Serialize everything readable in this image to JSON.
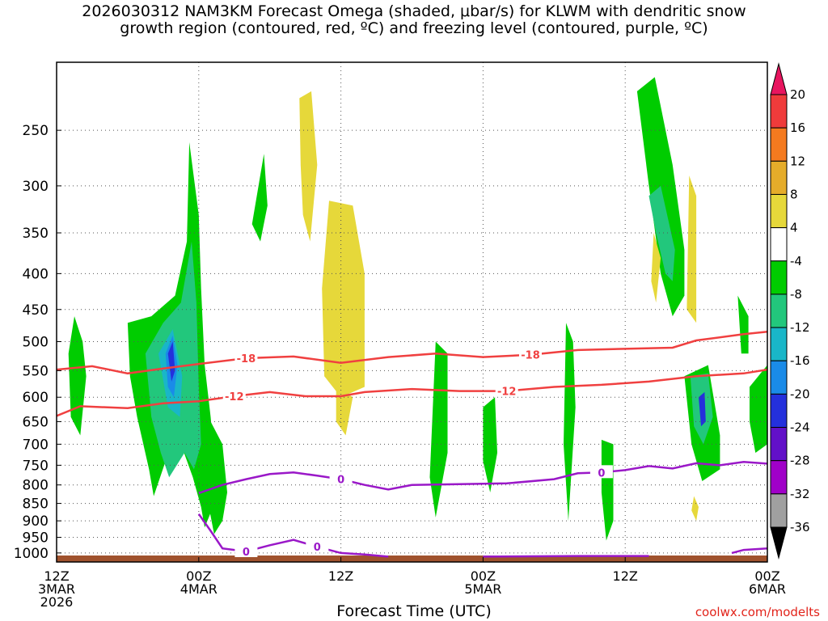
{
  "chart_data": {
    "type": "heatmap",
    "title_line1": "2026030312 NAM3KM Forecast Omega (shaded, μbar/s) for KLWM with dendritic snow",
    "title_line2": "growth region (contoured, red, ºC) and freezing level (contoured, purple, ºC)",
    "xlabel": "Forecast Time (UTC)",
    "credit": "coolwx.com/modelts",
    "x_ticks": [
      {
        "hour": 0,
        "lines": [
          "12Z",
          "3MAR",
          "2026"
        ]
      },
      {
        "hour": 12,
        "lines": [
          "00Z",
          "4MAR"
        ]
      },
      {
        "hour": 24,
        "lines": [
          "12Z"
        ]
      },
      {
        "hour": 36,
        "lines": [
          "00Z",
          "5MAR"
        ]
      },
      {
        "hour": 48,
        "lines": [
          "12Z"
        ]
      },
      {
        "hour": 60,
        "lines": [
          "00Z",
          "6MAR"
        ]
      }
    ],
    "xlim": [
      0,
      60
    ],
    "y_ticks": [
      250,
      300,
      350,
      400,
      450,
      500,
      550,
      600,
      650,
      700,
      750,
      800,
      850,
      900,
      950,
      1000
    ],
    "ylim": [
      200,
      1030
    ],
    "y_scale": "log",
    "colorbar": {
      "ticks": [
        "20",
        "16",
        "12",
        "8",
        "4",
        "-4",
        "-8",
        "-12",
        "-16",
        "-20",
        "-24",
        "-28",
        "-32",
        "-36"
      ],
      "colors": [
        "#e8155f",
        "#ef3b3b",
        "#f47a1f",
        "#e5ac2a",
        "#e6d83a",
        "#ffffff",
        "#00cc00",
        "#22c77c",
        "#19b6c8",
        "#1a8be8",
        "#2430dc",
        "#6210c8",
        "#a000c8",
        "#a0a0a0",
        "#000000"
      ]
    },
    "contours": [
      {
        "label": "-18",
        "color": "#f04040",
        "points": [
          [
            0,
            548
          ],
          [
            3,
            542
          ],
          [
            6,
            555
          ],
          [
            9,
            546
          ],
          [
            12,
            538
          ],
          [
            16,
            528
          ],
          [
            20,
            525
          ],
          [
            24,
            536
          ],
          [
            28,
            526
          ],
          [
            32,
            520
          ],
          [
            36,
            526
          ],
          [
            40,
            522
          ],
          [
            44,
            514
          ],
          [
            48,
            512
          ],
          [
            52,
            510
          ],
          [
            54,
            498
          ],
          [
            58,
            488
          ],
          [
            60,
            484
          ]
        ]
      },
      {
        "label": "-12",
        "color": "#f04040",
        "points": [
          [
            0,
            638
          ],
          [
            2,
            618
          ],
          [
            6,
            622
          ],
          [
            9,
            612
          ],
          [
            12,
            608
          ],
          [
            15,
            598
          ],
          [
            18,
            590
          ],
          [
            21,
            598
          ],
          [
            24,
            598
          ],
          [
            26,
            590
          ],
          [
            30,
            584
          ],
          [
            34,
            588
          ],
          [
            38,
            588
          ],
          [
            42,
            580
          ],
          [
            46,
            576
          ],
          [
            50,
            570
          ],
          [
            54,
            560
          ],
          [
            58,
            555
          ],
          [
            60,
            548
          ]
        ]
      },
      {
        "label": "0",
        "color": "#9a18c8",
        "points": [
          [
            12,
            822
          ],
          [
            14,
            800
          ],
          [
            16,
            785
          ],
          [
            18,
            772
          ],
          [
            20,
            768
          ],
          [
            22,
            776
          ],
          [
            24,
            785
          ],
          [
            26,
            800
          ],
          [
            28,
            812
          ],
          [
            30,
            800
          ],
          [
            34,
            798
          ],
          [
            38,
            796
          ],
          [
            42,
            785
          ],
          [
            44,
            770
          ],
          [
            46,
            768
          ],
          [
            48,
            762
          ],
          [
            50,
            752
          ],
          [
            52,
            758
          ],
          [
            54,
            745
          ],
          [
            56,
            750
          ],
          [
            58,
            742
          ],
          [
            60,
            746
          ]
        ]
      },
      {
        "label": "0",
        "color": "#9a18c8",
        "points": [
          [
            12,
            880
          ],
          [
            13,
            930
          ],
          [
            14,
            985
          ],
          [
            16,
            995
          ],
          [
            18,
            975
          ],
          [
            20,
            958
          ],
          [
            22,
            980
          ],
          [
            24,
            1000
          ],
          [
            26,
            1005
          ],
          [
            28,
            1012
          ]
        ]
      },
      {
        "label": "",
        "color": "#9a18c8",
        "points": [
          [
            36,
            1012
          ],
          [
            44,
            1010
          ],
          [
            50,
            1010
          ]
        ]
      },
      {
        "label": "",
        "color": "#9a18c8",
        "points": [
          [
            57,
            1000
          ],
          [
            58,
            990
          ],
          [
            60,
            985
          ]
        ]
      }
    ],
    "shaded_regions": [
      {
        "value": -4,
        "color": "#00cc00",
        "points": [
          [
            1.5,
            460
          ],
          [
            2.2,
            500
          ],
          [
            2.5,
            560
          ],
          [
            2,
            680
          ],
          [
            1.2,
            640
          ],
          [
            1,
            520
          ]
        ]
      },
      {
        "value": -4,
        "color": "#00cc00",
        "points": [
          [
            6,
            470
          ],
          [
            8,
            460
          ],
          [
            10,
            430
          ],
          [
            11,
            360
          ],
          [
            11.2,
            260
          ],
          [
            12,
            330
          ],
          [
            12.2,
            420
          ],
          [
            12.5,
            540
          ],
          [
            13,
            640
          ],
          [
            13.4,
            760
          ],
          [
            13.2,
            860
          ],
          [
            12.5,
            920
          ],
          [
            12.2,
            860
          ],
          [
            11.5,
            780
          ],
          [
            10.5,
            700
          ],
          [
            9.2,
            740
          ],
          [
            8.2,
            830
          ],
          [
            7.8,
            760
          ],
          [
            6.8,
            640
          ],
          [
            6.2,
            560
          ]
        ]
      },
      {
        "value": -8,
        "color": "#22c77c",
        "points": [
          [
            7.5,
            520
          ],
          [
            9,
            470
          ],
          [
            10.5,
            440
          ],
          [
            11.4,
            360
          ],
          [
            11.8,
            440
          ],
          [
            12,
            580
          ],
          [
            12.2,
            700
          ],
          [
            11.6,
            760
          ],
          [
            10.8,
            720
          ],
          [
            9.5,
            780
          ],
          [
            8.8,
            720
          ],
          [
            8,
            640
          ]
        ]
      },
      {
        "value": -12,
        "color": "#19b6c8",
        "points": [
          [
            8.6,
            520
          ],
          [
            9.8,
            480
          ],
          [
            10.6,
            560
          ],
          [
            10.4,
            640
          ],
          [
            9.4,
            620
          ]
        ]
      },
      {
        "value": -16,
        "color": "#1a8be8",
        "points": [
          [
            9.2,
            520
          ],
          [
            9.8,
            490
          ],
          [
            10.2,
            540
          ],
          [
            9.9,
            600
          ],
          [
            9.4,
            580
          ]
        ]
      },
      {
        "value": -20,
        "color": "#2430dc",
        "points": [
          [
            9.4,
            520
          ],
          [
            9.8,
            500
          ],
          [
            10.0,
            550
          ],
          [
            9.7,
            570
          ]
        ]
      },
      {
        "value": -4,
        "color": "#00cc00",
        "points": [
          [
            13,
            650
          ],
          [
            14,
            700
          ],
          [
            14.4,
            820
          ],
          [
            14,
            900
          ],
          [
            13.3,
            940
          ],
          [
            12.8,
            850
          ]
        ]
      },
      {
        "value": -4,
        "color": "#00cc00",
        "points": [
          [
            16.5,
            340
          ],
          [
            17.5,
            270
          ],
          [
            17.8,
            320
          ],
          [
            17.2,
            360
          ]
        ]
      },
      {
        "value": -4,
        "color": "#00cc00",
        "points": [
          [
            32,
            500
          ],
          [
            33,
            520
          ],
          [
            33,
            720
          ],
          [
            32,
            890
          ],
          [
            31.5,
            780
          ]
        ]
      },
      {
        "value": -4,
        "color": "#00cc00",
        "points": [
          [
            36,
            620
          ],
          [
            37,
            600
          ],
          [
            37.2,
            720
          ],
          [
            36.6,
            820
          ],
          [
            36,
            740
          ]
        ]
      },
      {
        "value": -4,
        "color": "#00cc00",
        "points": [
          [
            43,
            470
          ],
          [
            43.6,
            500
          ],
          [
            43.8,
            620
          ],
          [
            43.2,
            900
          ],
          [
            42.8,
            700
          ]
        ]
      },
      {
        "value": -4,
        "color": "#00cc00",
        "points": [
          [
            46,
            690
          ],
          [
            47,
            700
          ],
          [
            47,
            900
          ],
          [
            46.4,
            960
          ],
          [
            46,
            820
          ]
        ]
      },
      {
        "value": -4,
        "color": "#00cc00",
        "points": [
          [
            49,
            220
          ],
          [
            50.5,
            210
          ],
          [
            52,
            280
          ],
          [
            53,
            370
          ],
          [
            53,
            430
          ],
          [
            52,
            460
          ],
          [
            51,
            400
          ],
          [
            50,
            300
          ]
        ]
      },
      {
        "value": -8,
        "color": "#22c77c",
        "points": [
          [
            50,
            310
          ],
          [
            51,
            300
          ],
          [
            52.2,
            370
          ],
          [
            52,
            410
          ],
          [
            51.4,
            400
          ],
          [
            50.6,
            350
          ]
        ]
      },
      {
        "value": -4,
        "color": "#00cc00",
        "points": [
          [
            53,
            560
          ],
          [
            55,
            540
          ],
          [
            56,
            680
          ],
          [
            56,
            760
          ],
          [
            54.5,
            790
          ],
          [
            53.6,
            700
          ]
        ]
      },
      {
        "value": -8,
        "color": "#22c77c",
        "points": [
          [
            53.5,
            560
          ],
          [
            55,
            555
          ],
          [
            55.4,
            640
          ],
          [
            54.6,
            700
          ],
          [
            53.8,
            660
          ]
        ]
      },
      {
        "value": -20,
        "color": "#2430dc",
        "points": [
          [
            54.2,
            600
          ],
          [
            54.7,
            590
          ],
          [
            54.8,
            650
          ],
          [
            54.4,
            660
          ]
        ]
      },
      {
        "value": -4,
        "color": "#00cc00",
        "points": [
          [
            57.5,
            430
          ],
          [
            58.4,
            460
          ],
          [
            58.4,
            520
          ],
          [
            57.8,
            520
          ]
        ]
      },
      {
        "value": -4,
        "color": "#00cc00",
        "points": [
          [
            58.5,
            580
          ],
          [
            60,
            540
          ],
          [
            60,
            700
          ],
          [
            59,
            720
          ],
          [
            58.5,
            650
          ]
        ]
      },
      {
        "value": 4,
        "color": "#e6d83a",
        "points": [
          [
            20.5,
            225
          ],
          [
            21.5,
            220
          ],
          [
            22,
            280
          ],
          [
            21.4,
            360
          ],
          [
            20.8,
            330
          ],
          [
            20.6,
            280
          ]
        ]
      },
      {
        "value": 4,
        "color": "#e6d83a",
        "points": [
          [
            23,
            315
          ],
          [
            25,
            320
          ],
          [
            26,
            400
          ],
          [
            26,
            580
          ],
          [
            24,
            600
          ],
          [
            22.6,
            560
          ],
          [
            22.4,
            420
          ]
        ]
      },
      {
        "value": 4,
        "color": "#e6d83a",
        "points": [
          [
            23.6,
            580
          ],
          [
            25,
            600
          ],
          [
            24.4,
            680
          ],
          [
            23.6,
            650
          ]
        ]
      },
      {
        "value": 4,
        "color": "#e6d83a",
        "points": [
          [
            50.4,
            350
          ],
          [
            51,
            380
          ],
          [
            50.6,
            440
          ],
          [
            50.2,
            410
          ]
        ]
      },
      {
        "value": 4,
        "color": "#e6d83a",
        "points": [
          [
            53.4,
            290
          ],
          [
            54,
            310
          ],
          [
            54,
            470
          ],
          [
            53.2,
            450
          ]
        ]
      },
      {
        "value": 4,
        "color": "#e6d83a",
        "points": [
          [
            53.8,
            830
          ],
          [
            54.2,
            860
          ],
          [
            54,
            900
          ],
          [
            53.6,
            870
          ]
        ]
      }
    ]
  }
}
